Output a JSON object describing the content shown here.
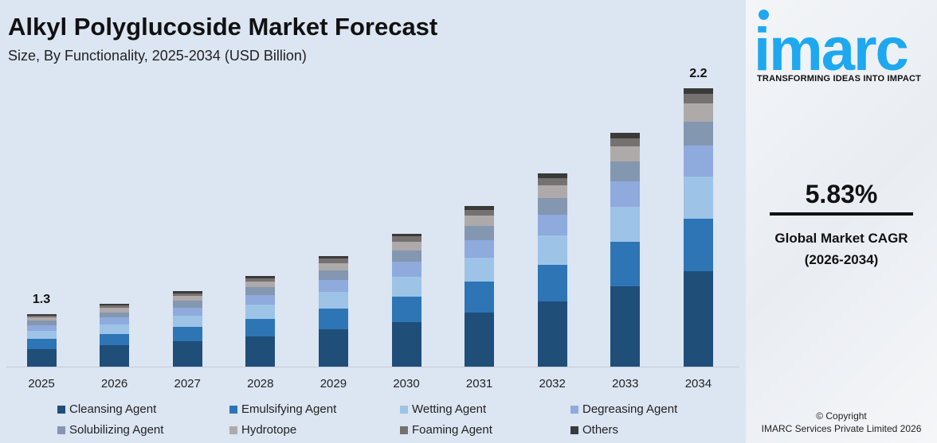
{
  "chart_data": {
    "type": "bar",
    "stacked": true,
    "title": "Alkyl Polyglucoside Market Forecast",
    "subtitle": "Size, By Functionality, 2025-2034 (USD Billion)",
    "categories": [
      "2025",
      "2026",
      "2027",
      "2028",
      "2029",
      "2030",
      "2031",
      "2032",
      "2033",
      "2034"
    ],
    "totals": [
      1.3,
      1.34,
      1.39,
      1.45,
      1.53,
      1.62,
      1.73,
      1.86,
      2.02,
      2.2
    ],
    "total_labels": {
      "first": "1.3",
      "last": "2.2"
    },
    "series": [
      {
        "name": "Cleansing Agent",
        "color": "#1f4e79",
        "values": [
          0.44,
          0.46,
          0.47,
          0.49,
          0.52,
          0.55,
          0.59,
          0.63,
          0.69,
          0.75
        ]
      },
      {
        "name": "Emulsifying Agent",
        "color": "#2e75b6",
        "values": [
          0.25,
          0.25,
          0.26,
          0.28,
          0.29,
          0.31,
          0.33,
          0.35,
          0.38,
          0.41
        ]
      },
      {
        "name": "Wetting Agent",
        "color": "#9dc3e6",
        "values": [
          0.2,
          0.2,
          0.21,
          0.22,
          0.23,
          0.24,
          0.26,
          0.28,
          0.3,
          0.33
        ]
      },
      {
        "name": "Degreasing Agent",
        "color": "#8faadc",
        "values": [
          0.14,
          0.15,
          0.15,
          0.16,
          0.17,
          0.18,
          0.19,
          0.2,
          0.22,
          0.24
        ]
      },
      {
        "name": "Solubilizing Agent",
        "color": "#8497b0",
        "values": [
          0.11,
          0.11,
          0.12,
          0.12,
          0.13,
          0.14,
          0.15,
          0.16,
          0.17,
          0.19
        ]
      },
      {
        "name": "Hydrotope",
        "color": "#aeaaaa",
        "values": [
          0.08,
          0.09,
          0.09,
          0.09,
          0.1,
          0.11,
          0.11,
          0.12,
          0.13,
          0.14
        ]
      },
      {
        "name": "Foaming Agent",
        "color": "#767171",
        "values": [
          0.05,
          0.05,
          0.05,
          0.05,
          0.06,
          0.06,
          0.06,
          0.07,
          0.07,
          0.08
        ]
      },
      {
        "name": "Others",
        "color": "#3a3a3a",
        "values": [
          0.03,
          0.03,
          0.03,
          0.03,
          0.03,
          0.03,
          0.04,
          0.04,
          0.04,
          0.04
        ]
      }
    ],
    "grid": false,
    "legend": "bottom"
  },
  "side": {
    "logo": "imarc",
    "tagline": "TRANSFORMING IDEAS INTO IMPACT",
    "cagr": "5.83%",
    "cagr_label": "Global Market CAGR",
    "cagr_period": "(2026-2034)",
    "copyright": "© Copyright",
    "company": "IMARC Services Private Limited 2026"
  }
}
